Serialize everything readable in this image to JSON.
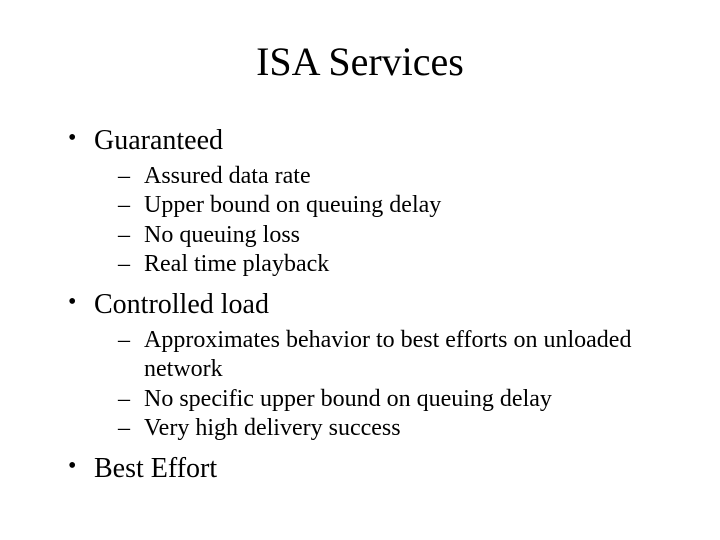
{
  "title": "ISA Services",
  "title_fontsize": 40,
  "body_fontsize_level1": 28,
  "body_fontsize_level2": 24,
  "font_family": "Times New Roman",
  "background_color": "#ffffff",
  "text_color": "#000000",
  "slide_width": 720,
  "slide_height": 540,
  "bullets": [
    {
      "label": "Guaranteed",
      "children": [
        "Assured data rate",
        "Upper bound on queuing delay",
        "No queuing loss",
        "Real time playback"
      ]
    },
    {
      "label": "Controlled load",
      "children": [
        "Approximates behavior to best efforts on unloaded network",
        "No specific upper bound on queuing delay",
        "Very high delivery success"
      ]
    },
    {
      "label": "Best Effort",
      "children": []
    }
  ]
}
